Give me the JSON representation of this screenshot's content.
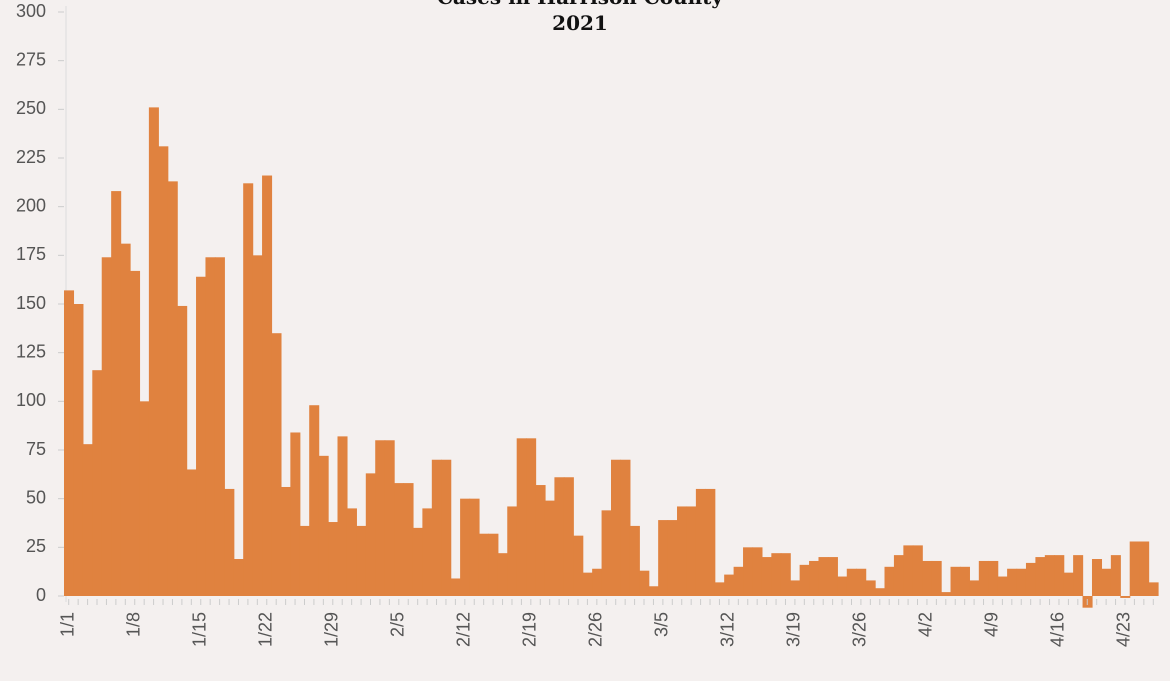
{
  "chart_data": {
    "type": "bar",
    "title": "Cases in Harrison County",
    "subtitle": "2021",
    "categories": [
      "1/1",
      null,
      null,
      null,
      null,
      null,
      null,
      "1/8",
      null,
      null,
      null,
      null,
      null,
      null,
      "1/15",
      null,
      null,
      null,
      null,
      null,
      null,
      "1/22",
      null,
      null,
      null,
      null,
      null,
      null,
      "1/29",
      null,
      null,
      null,
      null,
      null,
      null,
      "2/5",
      null,
      null,
      null,
      null,
      null,
      null,
      "2/12",
      null,
      null,
      null,
      null,
      null,
      null,
      "2/19",
      null,
      null,
      null,
      null,
      null,
      null,
      "2/26",
      null,
      null,
      null,
      null,
      null,
      null,
      "3/5",
      null,
      null,
      null,
      null,
      null,
      null,
      "3/12",
      null,
      null,
      null,
      null,
      null,
      null,
      "3/19",
      null,
      null,
      null,
      null,
      null,
      null,
      "3/26",
      null,
      null,
      null,
      null,
      null,
      null,
      "4/2",
      null,
      null,
      null,
      null,
      null,
      null,
      "4/9",
      null,
      null,
      null,
      null,
      null,
      null,
      "4/16",
      null,
      null,
      null,
      null,
      null,
      null,
      "4/23",
      null,
      null,
      null
    ],
    "values": [
      157,
      150,
      78,
      116,
      174,
      208,
      181,
      167,
      100,
      251,
      231,
      213,
      149,
      65,
      164,
      174,
      174,
      55,
      19,
      212,
      175,
      216,
      135,
      56,
      84,
      36,
      98,
      72,
      38,
      82,
      45,
      36,
      63,
      80,
      80,
      58,
      58,
      35,
      45,
      70,
      70,
      9,
      50,
      50,
      32,
      32,
      22,
      46,
      81,
      81,
      57,
      49,
      61,
      61,
      31,
      12,
      14,
      44,
      70,
      70,
      36,
      13,
      5,
      39,
      39,
      46,
      46,
      55,
      55,
      7,
      11,
      15,
      25,
      25,
      20,
      22,
      22,
      8,
      16,
      18,
      20,
      20,
      10,
      14,
      14,
      8,
      4,
      15,
      21,
      26,
      26,
      18,
      18,
      2,
      15,
      15,
      8,
      18,
      18,
      10,
      14,
      14,
      17,
      20,
      21,
      21,
      12,
      21,
      -6,
      19,
      14,
      21,
      -1,
      28,
      28,
      7
    ],
    "color": "#e0823f",
    "ylim": [
      0,
      300
    ],
    "yticks": [
      0,
      25,
      50,
      75,
      100,
      125,
      150,
      175,
      200,
      225,
      250,
      275,
      300
    ]
  }
}
